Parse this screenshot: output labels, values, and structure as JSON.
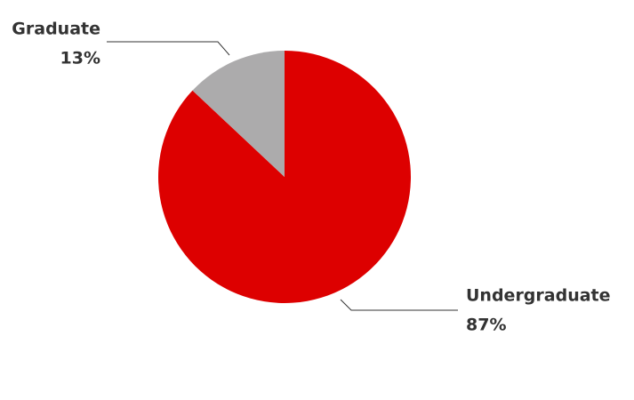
{
  "chart_data": {
    "type": "pie",
    "categories": [
      "Undergraduate",
      "Graduate"
    ],
    "values": [
      87,
      13
    ],
    "value_labels": [
      "87%",
      "13%"
    ],
    "colors": [
      "#dd0000",
      "#acabac"
    ]
  }
}
